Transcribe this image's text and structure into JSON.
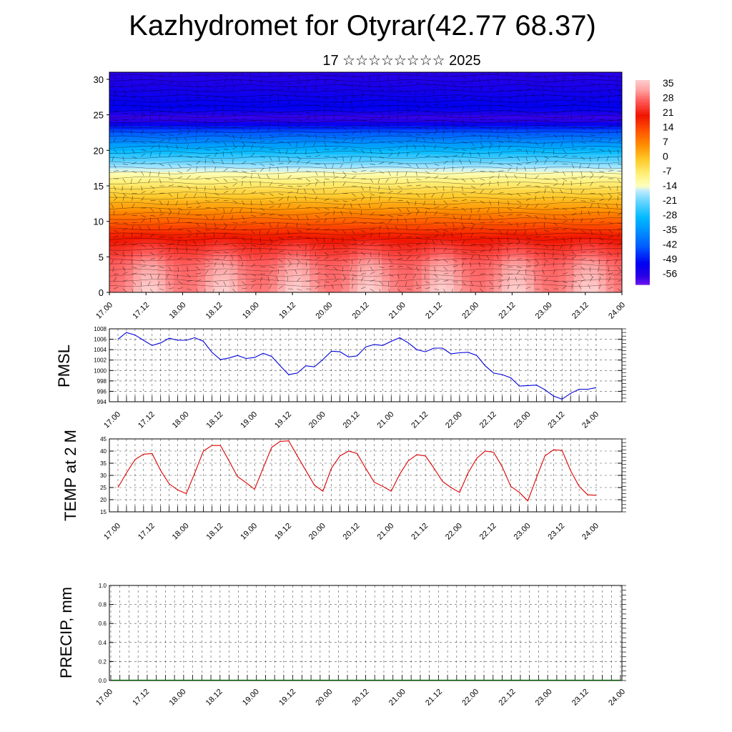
{
  "title": "Kazhydromet for Otyrar(42.77 68.37)",
  "subtitle": "17 ☆☆☆☆☆☆☆☆ 2025",
  "x_tick_labels": [
    "17.00",
    "17.12",
    "18.00",
    "18.12",
    "19.00",
    "19.12",
    "20.00",
    "20.12",
    "21.00",
    "21.12",
    "22.00",
    "22.12",
    "23.00",
    "23.12",
    "24.00"
  ],
  "chart_data": [
    {
      "type": "heatmap",
      "title": "",
      "xlabel": "",
      "ylabel": "",
      "x_ticks": [
        "17.00",
        "17.12",
        "18.00",
        "18.12",
        "19.00",
        "19.12",
        "20.00",
        "20.12",
        "21.00",
        "21.12",
        "22.00",
        "22.12",
        "23.00",
        "23.12",
        "24.00"
      ],
      "y_ticks": [
        0,
        5,
        10,
        15,
        20,
        25,
        30
      ],
      "ylim": [
        0,
        31
      ],
      "colorbar_ticks": [
        "35",
        "28",
        "21",
        "14",
        "7",
        "0",
        "-7",
        "-14",
        "-21",
        "-28",
        "-35",
        "-42",
        "-49",
        "-56"
      ],
      "colorbar_range": [
        -60,
        38
      ],
      "overlay": "wind barbs",
      "profile_by_level": [
        {
          "level": 0,
          "value": 33
        },
        {
          "level": 4,
          "value": 30
        },
        {
          "level": 8,
          "value": 20
        },
        {
          "level": 12,
          "value": 5
        },
        {
          "level": 15,
          "value": -5
        },
        {
          "level": 17,
          "value": -13
        },
        {
          "level": 20,
          "value": -28
        },
        {
          "level": 23,
          "value": -45
        },
        {
          "level": 24.5,
          "value": -58
        },
        {
          "level": 26,
          "value": -50
        },
        {
          "level": 31,
          "value": -56
        }
      ]
    },
    {
      "type": "line",
      "ylabel": "PMSL",
      "ylim": [
        994,
        1008
      ],
      "y_ticks": [
        994,
        996,
        998,
        1000,
        1002,
        1004,
        1006,
        1008
      ],
      "grid": true,
      "series": [
        {
          "color": "#0000dd",
          "values": [
            1006.0,
            1007.3,
            1006.8,
            1005.8,
            1004.8,
            1005.3,
            1006.2,
            1005.8,
            1005.8,
            1006.3,
            1005.6,
            1003.5,
            1002.1,
            1002.4,
            1002.9,
            1002.3,
            1002.5,
            1003.3,
            1002.7,
            1000.9,
            999.2,
            999.5,
            1000.9,
            1000.7,
            1002.1,
            1003.7,
            1003.6,
            1002.6,
            1002.8,
            1004.5,
            1005.0,
            1004.8,
            1005.6,
            1006.3,
            1005.3,
            1004.0,
            1003.6,
            1004.3,
            1004.3,
            1003.2,
            1003.4,
            1003.5,
            1002.9,
            1000.9,
            999.5,
            999.2,
            998.6,
            997.0,
            997.1,
            997.2,
            996.3,
            995.1,
            994.5,
            995.6,
            996.4,
            996.4,
            996.7
          ]
        }
      ]
    },
    {
      "type": "line",
      "ylabel": "TEMP at 2 M",
      "ylim": [
        15,
        45
      ],
      "y_ticks": [
        15,
        20,
        25,
        30,
        35,
        40,
        45
      ],
      "grid": true,
      "series": [
        {
          "color": "#dd0000",
          "values": [
            25.0,
            31.0,
            36.5,
            38.7,
            39.0,
            32.0,
            26.5,
            24.0,
            22.5,
            31.0,
            40.0,
            42.3,
            42.3,
            36.0,
            29.5,
            27.0,
            24.3,
            33.0,
            41.5,
            44.0,
            44.2,
            38.0,
            32.0,
            26.0,
            23.5,
            33.0,
            38.0,
            40.0,
            39.0,
            33.0,
            27.2,
            25.5,
            23.5,
            30.5,
            36.0,
            38.5,
            38.0,
            33.0,
            27.5,
            25.0,
            23.0,
            31.0,
            37.0,
            40.0,
            39.5,
            33.5,
            25.5,
            23.0,
            19.5,
            29.0,
            38.0,
            40.5,
            40.3,
            32.0,
            25.5,
            22.0,
            21.8
          ]
        }
      ]
    },
    {
      "type": "line",
      "ylabel": "PRECIP, mm",
      "ylim": [
        0.0,
        1.0
      ],
      "y_ticks": [
        "0.0",
        "0.2",
        "0.4",
        "0.6",
        "0.8",
        "1.0"
      ],
      "grid": true,
      "series": [
        {
          "color": "#006400",
          "values": [
            0,
            0,
            0,
            0,
            0,
            0,
            0,
            0,
            0,
            0,
            0,
            0,
            0,
            0,
            0,
            0,
            0,
            0,
            0,
            0,
            0,
            0,
            0,
            0,
            0,
            0,
            0,
            0,
            0,
            0,
            0,
            0,
            0,
            0,
            0,
            0,
            0,
            0,
            0,
            0,
            0,
            0,
            0,
            0,
            0,
            0,
            0,
            0,
            0,
            0,
            0,
            0,
            0,
            0,
            0,
            0,
            0
          ]
        }
      ]
    }
  ]
}
